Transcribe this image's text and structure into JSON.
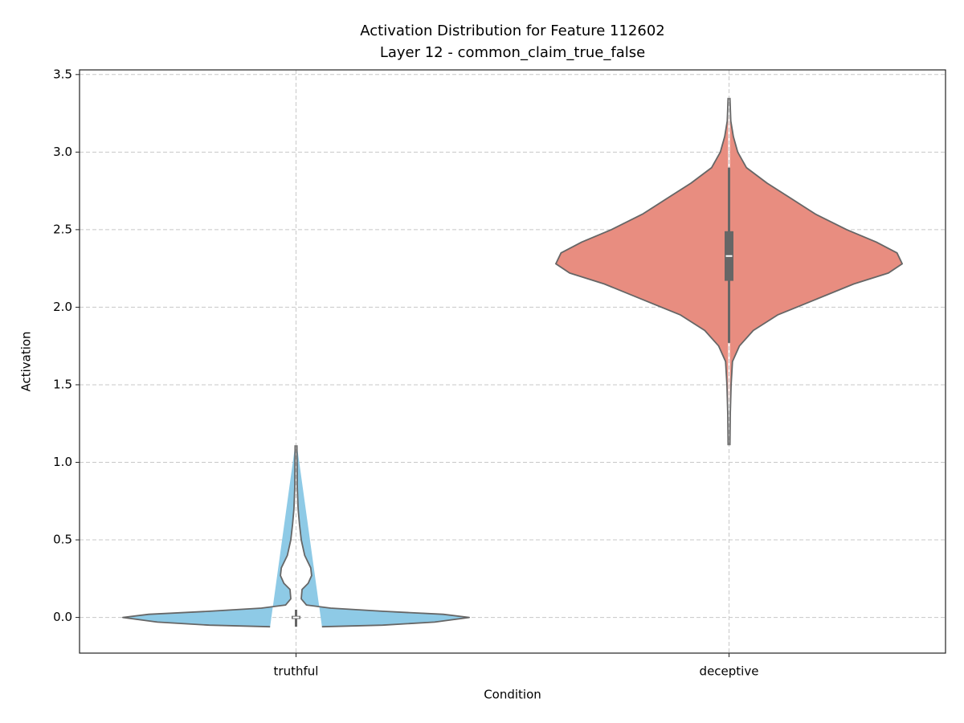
{
  "chart_data": {
    "type": "violin",
    "title": "Activation Distribution for Feature 112602",
    "subtitle": "Layer 12 - common_claim_true_false",
    "x_label": "Condition",
    "y_label": "Activation",
    "categories": [
      "truthful",
      "deceptive"
    ],
    "colors": [
      "#8ecae6",
      "#e88d80"
    ],
    "edge_color": "#666666",
    "ylim": [
      -0.23,
      3.53
    ],
    "yticks": [
      {
        "value": 0,
        "label": "0.0"
      },
      {
        "value": 0.5,
        "label": "0.5"
      },
      {
        "value": 1,
        "label": "1.0"
      },
      {
        "value": 1.5,
        "label": "1.5"
      },
      {
        "value": 2,
        "label": "2.0"
      },
      {
        "value": 2.5,
        "label": "2.5"
      },
      {
        "value": 3,
        "label": "3.0"
      },
      {
        "value": 3.5,
        "label": "3.5"
      }
    ],
    "grid": true,
    "violins": [
      {
        "density": {
          "y": [
            -0.06,
            -0.05,
            -0.03,
            0.0,
            0.02,
            0.04,
            0.06,
            0.08,
            0.12,
            0.18,
            0.22,
            0.27,
            0.32,
            0.4,
            0.5,
            0.6,
            0.7,
            0.85,
            1.0,
            1.11
          ],
          "width": [
            0.15,
            0.5,
            0.8,
            1.0,
            0.85,
            0.5,
            0.2,
            0.06,
            0.03,
            0.035,
            0.07,
            0.09,
            0.085,
            0.05,
            0.03,
            0.02,
            0.012,
            0.007,
            0.006,
            0.005
          ]
        },
        "box": {
          "whislo": -0.06,
          "q1": -0.01,
          "median": 0.0,
          "q3": 0.01,
          "whishi": 0.05
        }
      },
      {
        "density": {
          "y": [
            1.11,
            1.3,
            1.5,
            1.65,
            1.75,
            1.85,
            1.95,
            2.05,
            2.15,
            2.22,
            2.28,
            2.35,
            2.42,
            2.5,
            2.6,
            2.7,
            2.8,
            2.9,
            3.0,
            3.1,
            3.2,
            3.35
          ],
          "width": [
            0.005,
            0.007,
            0.012,
            0.02,
            0.06,
            0.14,
            0.28,
            0.5,
            0.72,
            0.92,
            1.0,
            0.97,
            0.85,
            0.68,
            0.5,
            0.36,
            0.22,
            0.1,
            0.05,
            0.025,
            0.01,
            0.005
          ]
        },
        "box": {
          "whislo": 1.77,
          "q1": 2.17,
          "median": 2.33,
          "q3": 2.49,
          "whishi": 2.9
        }
      }
    ]
  }
}
